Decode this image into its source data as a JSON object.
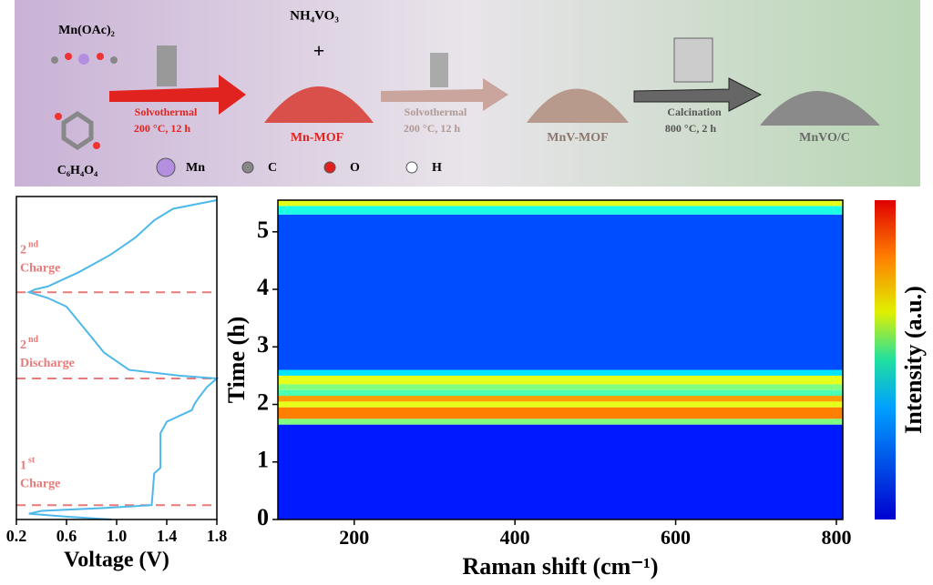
{
  "schematic": {
    "reagent_1": "Mn(OAc)₂",
    "reagent_2": "C₆H₄O₄",
    "reagent_3": "NH₄VO₃",
    "plus": "+",
    "step_1": {
      "name": "Solvothermal",
      "condition": "200 °C, 12 h"
    },
    "step_2": {
      "name": "Solvothermal",
      "condition": "200 °C, 12 h"
    },
    "step_3": {
      "name": "Calcination",
      "condition": "800 °C, 2 h"
    },
    "products": [
      "Mn-MOF",
      "MnV-MOF",
      "MnVO/C"
    ],
    "legend": [
      {
        "label": "Mn",
        "color": "#b48fe0"
      },
      {
        "label": "C",
        "color": "#888888"
      },
      {
        "label": "O",
        "color": "#e02020"
      },
      {
        "label": "H",
        "color": "#ffffff"
      }
    ]
  },
  "chart_data": [
    {
      "type": "line",
      "x_label": "Voltage (V)",
      "xlim": [
        0.2,
        1.8
      ],
      "xticks": [
        0.2,
        0.6,
        {
          "value": 1.0,
          "label": "1.0"
        },
        1.4,
        1.8
      ],
      "ylim": [
        0,
        5.55
      ],
      "color": "#4db8ea",
      "x": [
        0.96,
        0.6,
        0.3,
        0.4,
        0.9,
        1.28,
        1.3,
        1.35,
        1.35,
        1.4,
        1.6,
        1.62,
        1.65,
        1.72,
        1.8,
        1.5,
        1.1,
        0.9,
        0.75,
        0.6,
        0.45,
        0.3,
        0.35,
        0.45,
        0.7,
        0.95,
        1.15,
        1.3,
        1.45,
        1.8
      ],
      "values": [
        0,
        0.05,
        0.1,
        0.15,
        0.2,
        0.25,
        0.8,
        0.9,
        1.5,
        1.7,
        1.9,
        2.0,
        2.1,
        2.3,
        2.45,
        2.5,
        2.6,
        2.9,
        3.3,
        3.7,
        3.85,
        3.95,
        4.0,
        4.05,
        4.3,
        4.6,
        4.9,
        5.2,
        5.4,
        5.55
      ],
      "dashed_lines": [
        0.25,
        2.45,
        3.95
      ],
      "dash_color": "#e87a7a",
      "annotations": [
        {
          "sup_base": "2",
          "sup": "nd",
          "text": "Charge",
          "at": 4.55
        },
        {
          "sup_base": "2",
          "sup": "nd",
          "text": "Discharge",
          "at": 2.9
        },
        {
          "sup_base": "1",
          "sup": "st",
          "text": "Charge",
          "at": 0.8
        }
      ]
    },
    {
      "type": "heatmap",
      "x_label": "Raman shift (cm⁻¹)",
      "y_label": "Time (h)",
      "colorbar_label": "Intensity (a.u.)",
      "xlim": [
        105,
        808
      ],
      "xticks": [
        200,
        400,
        600,
        800
      ],
      "ylim": [
        0,
        5.55
      ],
      "yticks": [
        0,
        1,
        2,
        3,
        4,
        5
      ],
      "clim": [
        0,
        1
      ],
      "y_edges": [
        0,
        1.65,
        1.75,
        1.95,
        2.05,
        2.15,
        2.25,
        2.35,
        2.5,
        2.6,
        5.3,
        5.45,
        5.55
      ],
      "values": [
        0.15,
        0.5,
        0.75,
        0.6,
        0.72,
        0.45,
        0.5,
        0.6,
        0.35,
        0.2,
        0.4,
        0.6
      ]
    }
  ]
}
